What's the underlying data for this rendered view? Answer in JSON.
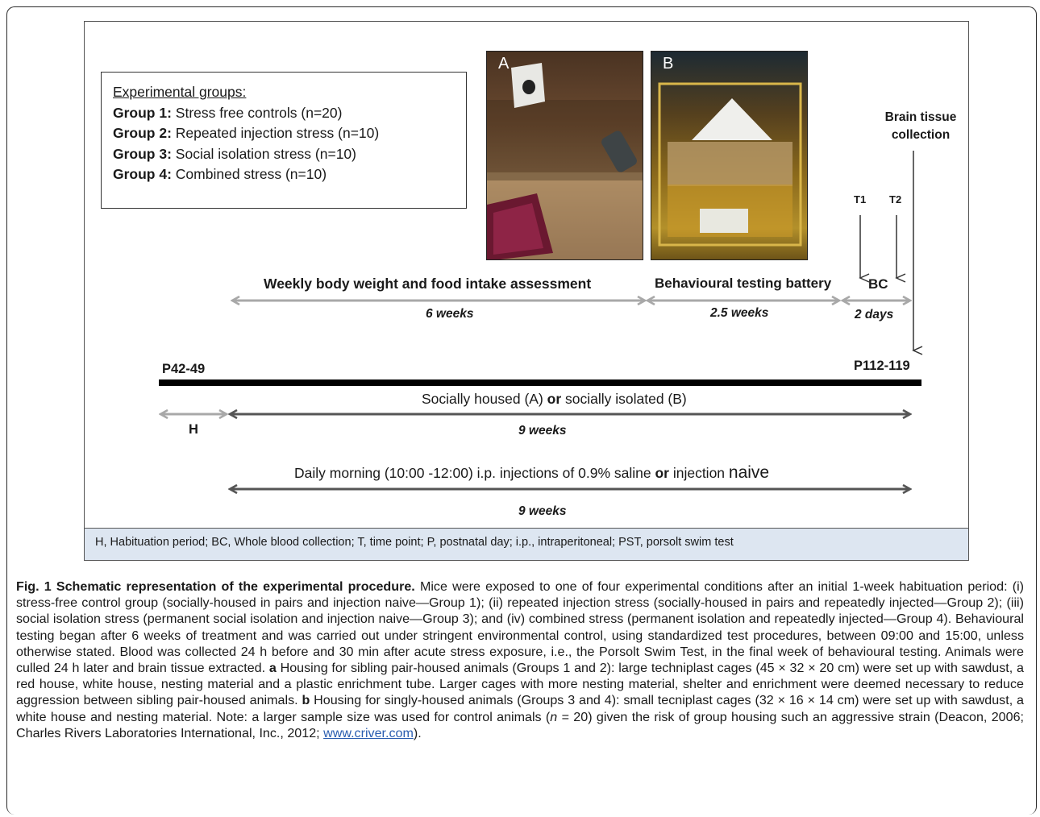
{
  "groups": {
    "title": "Experimental groups:",
    "items": [
      {
        "label": "Group 1:",
        "text": " Stress free controls (n=20)"
      },
      {
        "label": "Group 2:",
        "text": " Repeated injection stress (n=10)"
      },
      {
        "label": "Group 3:",
        "text": " Social isolation stress (n=10)"
      },
      {
        "label": "Group 4:",
        "text": " Combined stress (n=10)"
      }
    ]
  },
  "photos": {
    "a_label": "A",
    "b_label": "B"
  },
  "timeline": {
    "brain_line1": "Brain tissue",
    "brain_line2": "collection",
    "t1": "T1",
    "t2": "T2",
    "weekly": "Weekly body weight and food intake assessment",
    "weekly_duration": "6 weeks",
    "behav": "Behavioural testing battery",
    "behav_duration": "2.5 weeks",
    "bc": "BC",
    "bc_duration": "2 days",
    "start": "P42-49",
    "end": "P112-119",
    "housing_a": "Socially housed (A) ",
    "housing_or": "or",
    "housing_b": " socially isolated (B)",
    "habituation": "H",
    "housing_duration": "9 weeks",
    "inj_a": "Daily morning (10:00 -12:00) i.p. injections of 0.9% saline ",
    "inj_or": "or",
    "inj_b": " injection ",
    "inj_naive": "naive",
    "inj_duration": "9 weeks"
  },
  "abbreviations": "H, Habituation period; BC, Whole blood collection; T, time point; P, postnatal day; i.p., intraperitoneal; PST, porsolt swim test",
  "caption": {
    "title": "Fig. 1 Schematic representation of the experimental procedure.",
    "p1": " Mice were exposed to one of four experimental conditions after an initial 1-week habituation period: (i) stress-free control group (socially-housed in pairs and injection naive—Group 1); (ii) repeated injection stress (socially-housed in pairs and repeatedly injected—Group 2); (iii) social isolation stress (permanent social isolation and injection naive—Group 3); and (iv) combined stress (permanent isolation and repeatedly injected—Group 4). Behavioural testing began after 6 weeks of treatment and was carried out under stringent environmental control, using standardized test procedures, between 09:00 and 15:00, unless otherwise stated. Blood was collected 24 h before and 30 min after acute stress exposure, i.e., the Porsolt Swim Test, in the final week of behavioural testing. Animals were culled 24 h later and brain tissue extracted. ",
    "a": "a",
    "p2": " Housing for sibling pair-housed animals (Groups 1 and 2): large techniplast cages (45 × 32 × 20 cm) were set up with sawdust, a red house, white house, nesting material and a plastic enrichment tube. Larger cages with more nesting material, shelter and enrichment were deemed necessary to reduce aggression between sibling pair-housed animals. ",
    "b": "b",
    "p3": " Housing for singly-housed animals (Groups 3 and 4): small tecniplast cages (32 × 16 × 14 cm) were set up with sawdust, a white house and nesting material. Note: a larger sample size was used for control animals (",
    "n": "n",
    "p4": " = 20) given the risk of group housing such an aggressive strain (Deacon, 2006; Charles Rivers Laboratories International, Inc., 2012; ",
    "link": "www.criver.com",
    "p5": ")."
  }
}
